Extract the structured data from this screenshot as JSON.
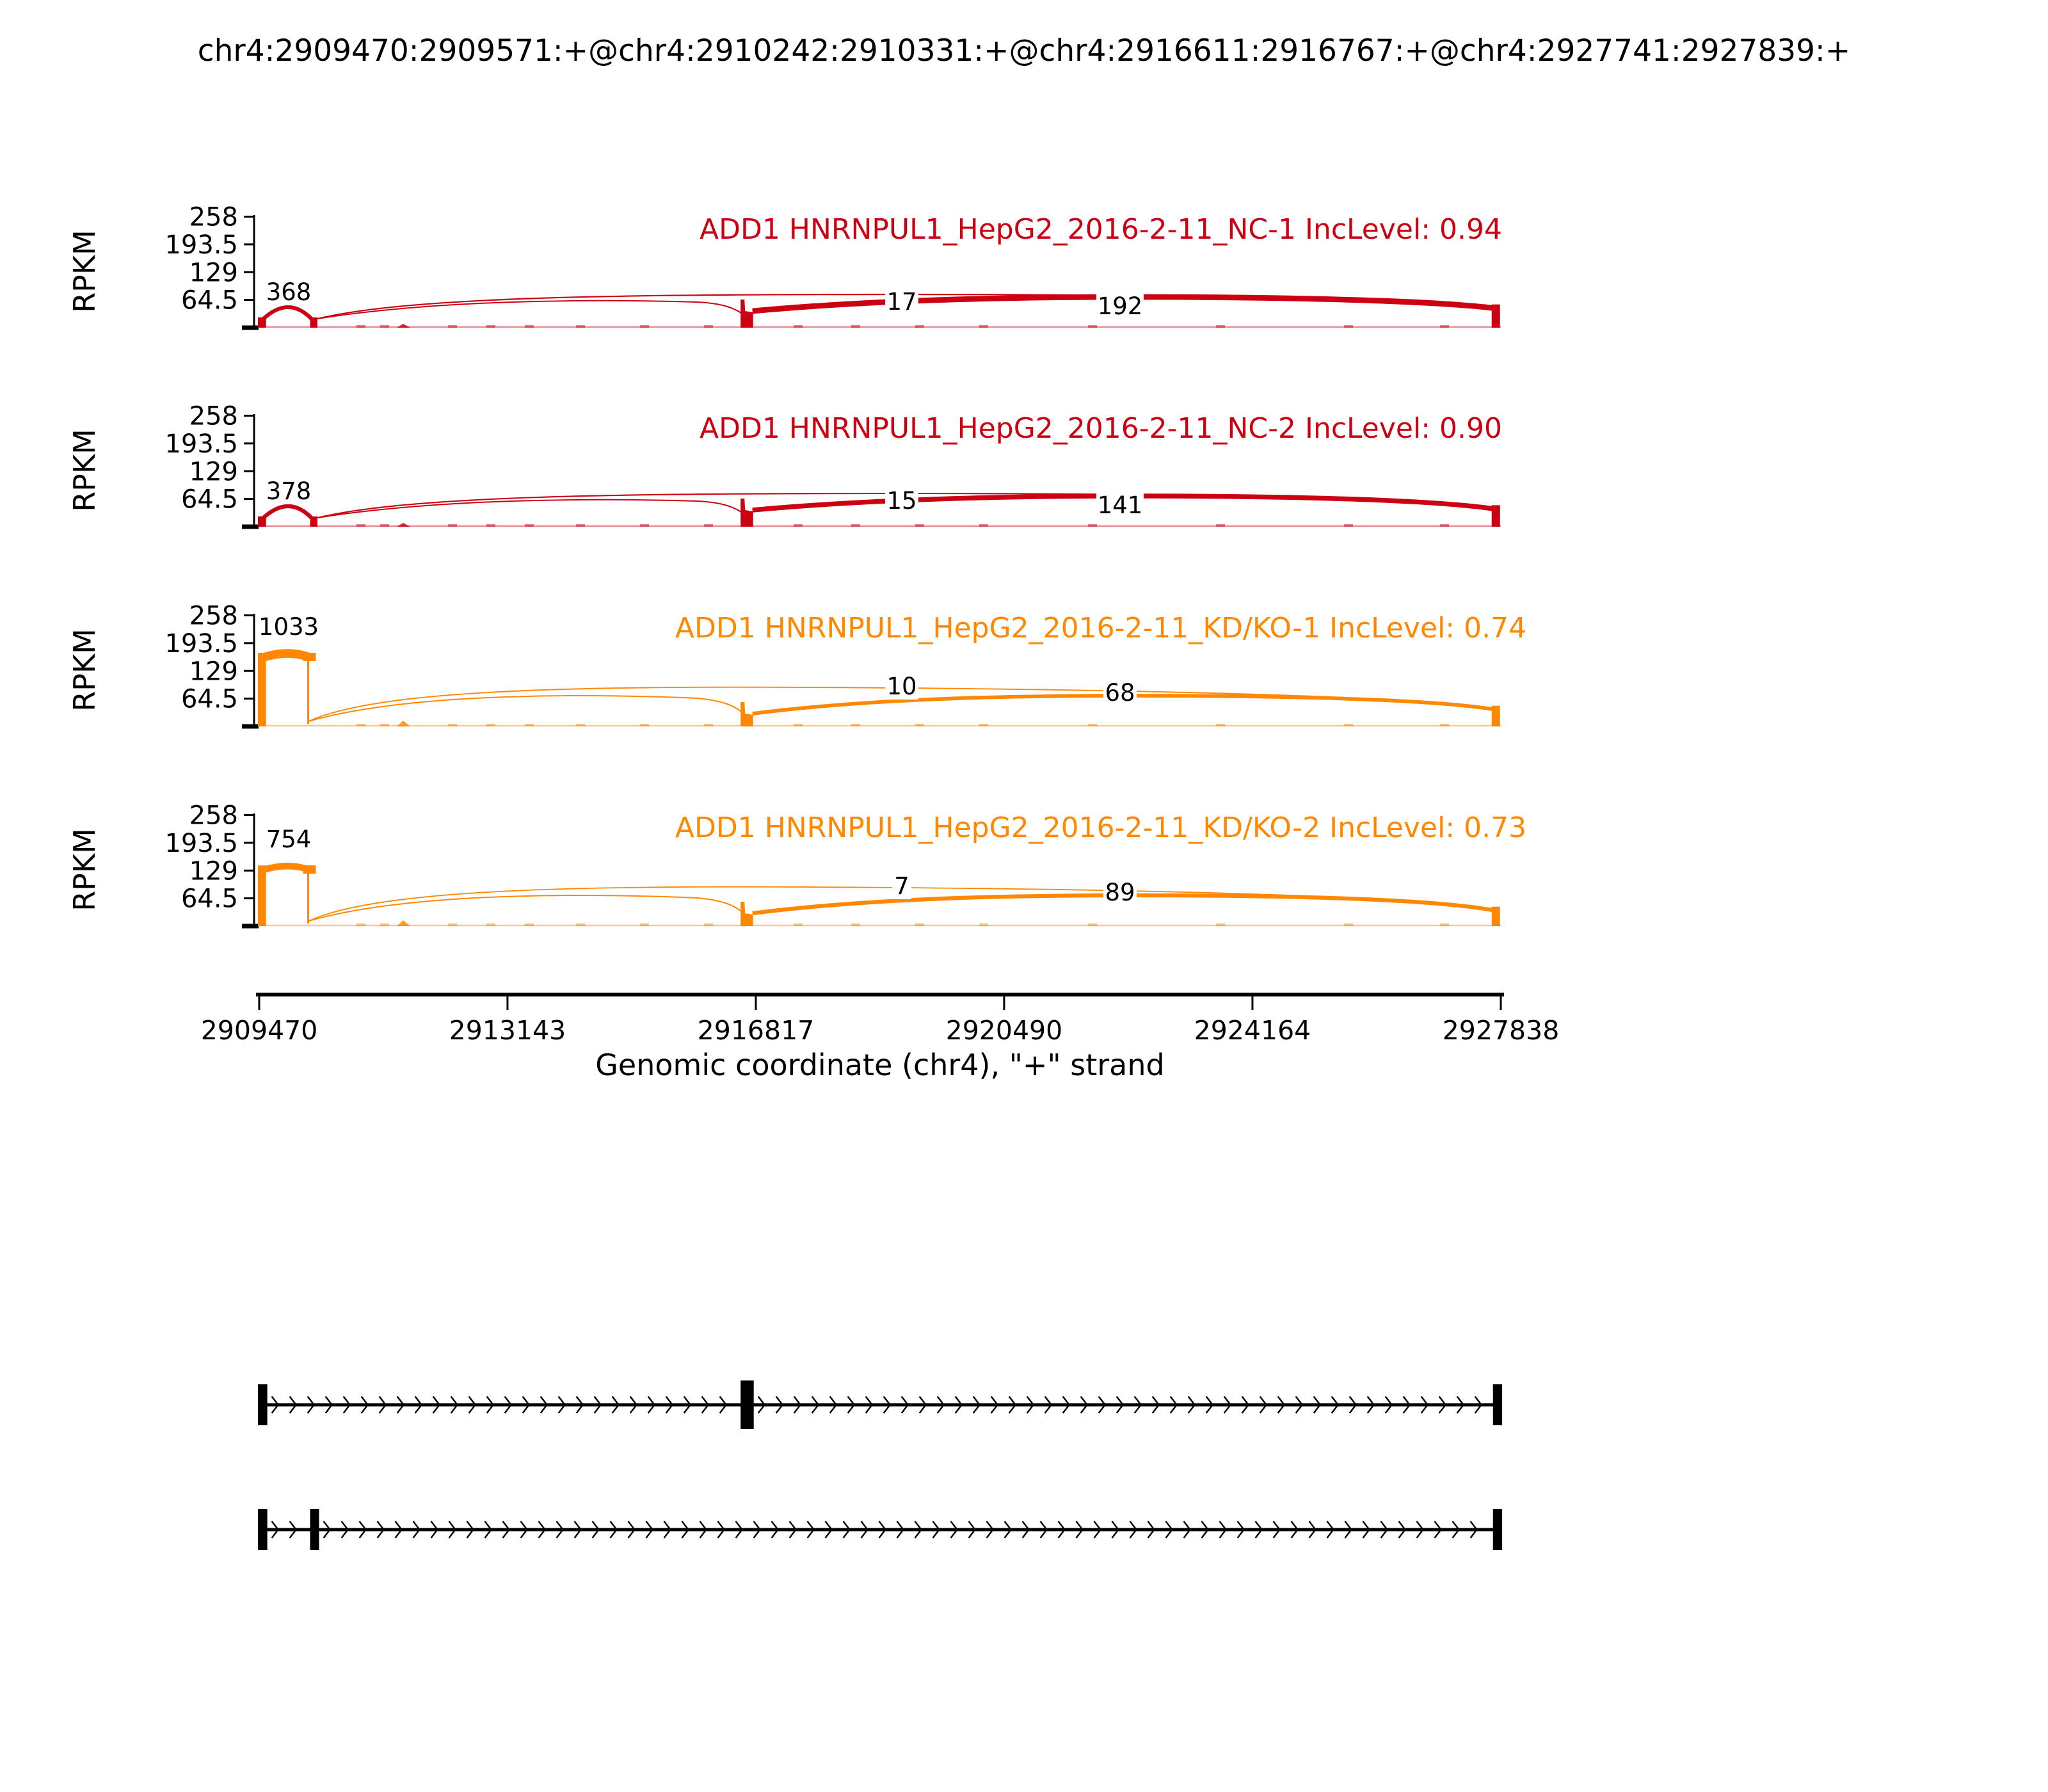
{
  "title": "chr4:2909470:2909571:+@chr4:2910242:2910331:+@chr4:2916611:2916767:+@chr4:2927741:2927839:+",
  "colors": {
    "sample1": "#CC0011",
    "sample2": "#FF8800",
    "axis": "#000000",
    "background": "#FFFFFF",
    "junction_label_text": "#000000"
  },
  "y_axis": {
    "label": "RPKM",
    "ticks": [
      "258",
      "193.5",
      "129",
      "64.5"
    ]
  },
  "x_axis": {
    "label": "Genomic coordinate (chr4), \"+\" strand",
    "ticks": [
      "2909470",
      "2913143",
      "2916817",
      "2920490",
      "2924164",
      "2927838"
    ]
  },
  "chart_data": {
    "type": "sashimi",
    "event_id": "chr4:2909470:2909571:+@chr4:2910242:2910331:+@chr4:2916611:2916767:+@chr4:2927741:2927839:+",
    "chromosome": "chr4",
    "strand": "+",
    "gene": "ADD1",
    "x_domain": [
      2909470,
      2927838
    ],
    "x_ticks": [
      2909470,
      2913143,
      2916817,
      2920490,
      2924164,
      2927838
    ],
    "y_ticks": [
      258,
      193.5,
      129,
      64.5
    ],
    "y_max": 258,
    "exons": [
      {
        "name": "exon1",
        "start": 2909470,
        "end": 2909571
      },
      {
        "name": "exon2",
        "start": 2910242,
        "end": 2910331
      },
      {
        "name": "exon3",
        "start": 2916611,
        "end": 2916767
      },
      {
        "name": "exon4",
        "start": 2927741,
        "end": 2927839
      }
    ],
    "samples": [
      {
        "label": "ADD1 HNRNPUL1_HepG2_2016-2-11_NC-1",
        "inc_level_label": "IncLevel:",
        "inc_level": "0.94",
        "color": "sample1",
        "junction_counts": {
          "exon1_exon2": 368,
          "skipping": 17,
          "inclusion": 192
        },
        "approx_peak_rpkm": 24,
        "exon4_peak_rpkm": 54
      },
      {
        "label": "ADD1 HNRNPUL1_HepG2_2016-2-11_NC-2",
        "inc_level_label": "IncLevel:",
        "inc_level": "0.90",
        "color": "sample1",
        "junction_counts": {
          "exon1_exon2": 378,
          "skipping": 15,
          "inclusion": 141
        },
        "approx_peak_rpkm": 24,
        "exon4_peak_rpkm": 50
      },
      {
        "label": "ADD1 HNRNPUL1_HepG2_2016-2-11_KD/KO-1",
        "inc_level_label": "IncLevel:",
        "inc_level": "0.74",
        "color": "sample2",
        "junction_counts": {
          "exon1_exon2": 1033,
          "skipping": 10,
          "inclusion": 68
        },
        "approx_peak_rpkm": 171,
        "exon4_peak_rpkm": 48
      },
      {
        "label": "ADD1 HNRNPUL1_HepG2_2016-2-11_KD/KO-2",
        "inc_level_label": "IncLevel:",
        "inc_level": "0.73",
        "color": "sample2",
        "junction_counts": {
          "exon1_exon2": 754,
          "skipping": 7,
          "inclusion": 89
        },
        "approx_peak_rpkm": 141,
        "exon4_peak_rpkm": 45
      }
    ],
    "gene_models": [
      {
        "name": "isoform-inclusion",
        "exons": [
          0,
          2,
          3
        ],
        "strand": "+"
      },
      {
        "name": "isoform-skipping",
        "exons": [
          0,
          1,
          3
        ],
        "strand": "+"
      }
    ]
  }
}
